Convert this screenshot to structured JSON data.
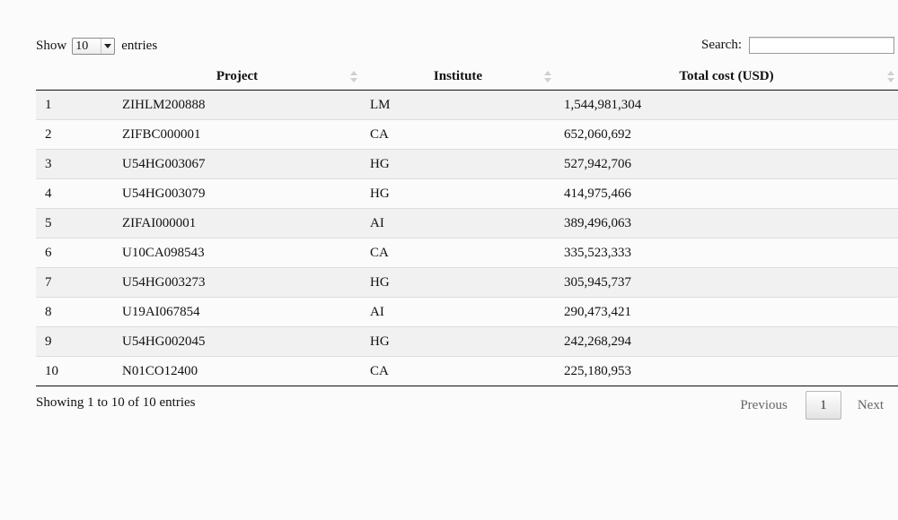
{
  "length_control": {
    "prefix": "Show",
    "selected": "10",
    "suffix": "entries"
  },
  "search": {
    "label": "Search:",
    "value": ""
  },
  "table": {
    "columns": [
      "",
      "Project",
      "Institute",
      "Total cost (USD)"
    ],
    "rows": [
      {
        "idx": "1",
        "project": "ZIHLM200888",
        "institute": "LM",
        "cost": "1,544,981,304"
      },
      {
        "idx": "2",
        "project": "ZIFBC000001",
        "institute": "CA",
        "cost": "652,060,692"
      },
      {
        "idx": "3",
        "project": "U54HG003067",
        "institute": "HG",
        "cost": "527,942,706"
      },
      {
        "idx": "4",
        "project": "U54HG003079",
        "institute": "HG",
        "cost": "414,975,466"
      },
      {
        "idx": "5",
        "project": "ZIFAI000001",
        "institute": "AI",
        "cost": "389,496,063"
      },
      {
        "idx": "6",
        "project": "U10CA098543",
        "institute": "CA",
        "cost": "335,523,333"
      },
      {
        "idx": "7",
        "project": "U54HG003273",
        "institute": "HG",
        "cost": "305,945,737"
      },
      {
        "idx": "8",
        "project": "U19AI067854",
        "institute": "AI",
        "cost": "290,473,421"
      },
      {
        "idx": "9",
        "project": "U54HG002045",
        "institute": "HG",
        "cost": "242,268,294"
      },
      {
        "idx": "10",
        "project": "N01CO12400",
        "institute": "CA",
        "cost": "225,180,953"
      }
    ]
  },
  "footer": {
    "info": "Showing 1 to 10 of 10 entries",
    "previous": "Previous",
    "current_page": "1",
    "next": "Next"
  },
  "icons": {
    "sort": "sort-both-icon",
    "dropdown": "chevron-down-icon"
  },
  "colors": {
    "odd_row": "#f1f1f1",
    "even_row": "#fbfbfb",
    "disabled_pager_text": "#666666"
  }
}
